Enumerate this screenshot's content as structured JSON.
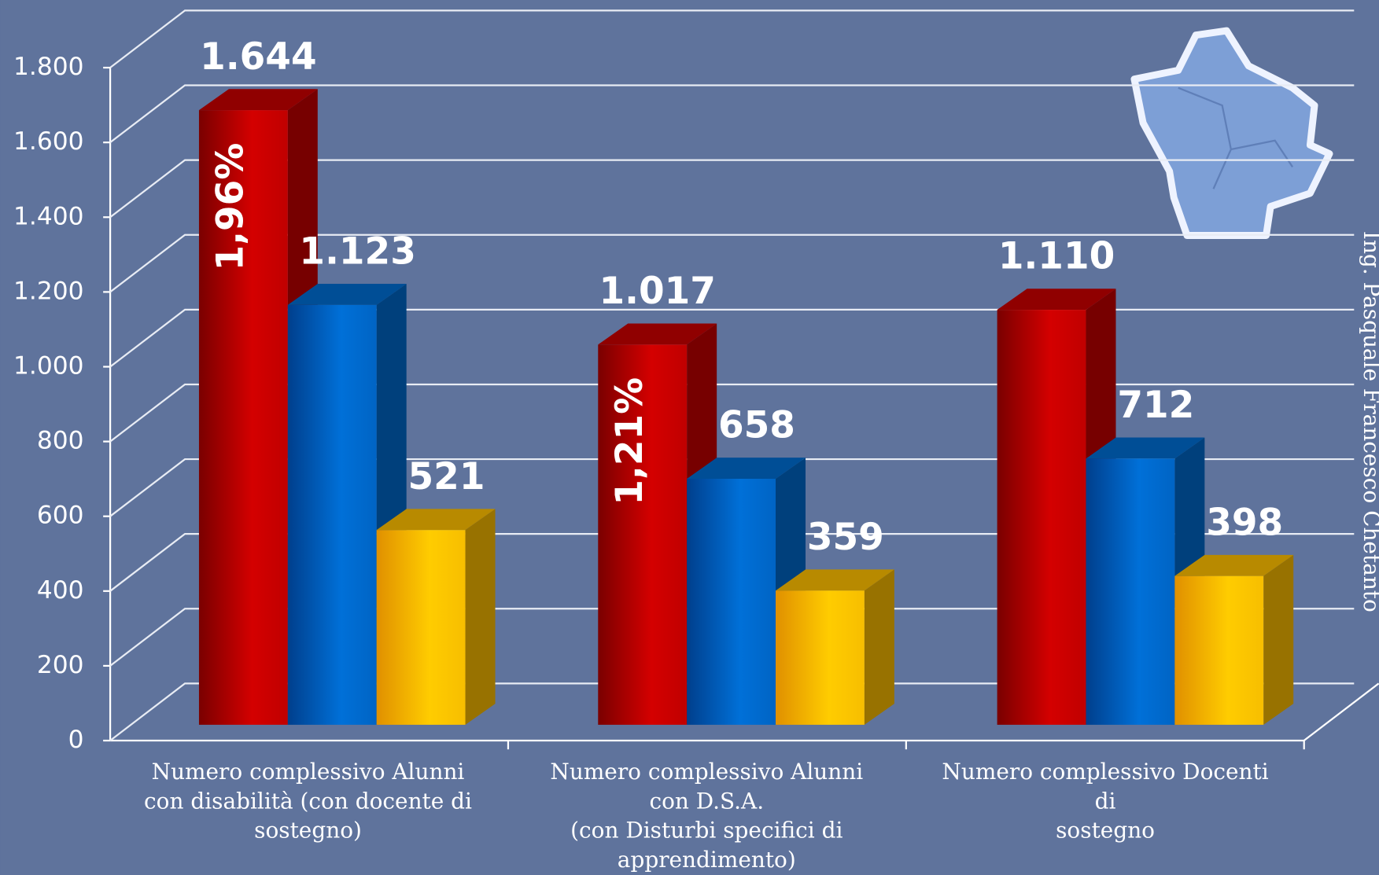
{
  "chart_data": {
    "type": "bar3d",
    "categories": [
      [
        "Numero complessivo Alunni",
        "con disabilità (con docente di",
        "sostegno)"
      ],
      [
        "Numero complessivo Alunni",
        "con D.S.A.",
        "(con Disturbi specifici di",
        "apprendimento)"
      ],
      [
        "Numero complessivo Docenti",
        "di",
        "sostegno"
      ]
    ],
    "series": [
      {
        "color": "#c00000",
        "values": [
          1644,
          1017,
          1110
        ],
        "value_labels": [
          "1.644",
          "1.017",
          "1.110"
        ],
        "annotations": [
          "1,96%",
          "1,21%",
          null
        ]
      },
      {
        "color": "#0068c8",
        "values": [
          1123,
          658,
          712
        ],
        "value_labels": [
          "1.123",
          "658",
          "712"
        ]
      },
      {
        "color": "#f5b800",
        "values": [
          521,
          359,
          398
        ],
        "value_labels": [
          "521",
          "359",
          "398"
        ]
      }
    ],
    "ylim": [
      0,
      1800
    ],
    "yticks": [
      0,
      200,
      400,
      600,
      800,
      {
        "value": 1000,
        "label": "1.000"
      },
      {
        "value": 1200,
        "label": "1.200"
      },
      {
        "value": 1400,
        "label": "1.400"
      },
      {
        "value": 1600,
        "label": "1.600"
      },
      {
        "value": 1800,
        "label": "1.800"
      }
    ],
    "grid": true,
    "credit": "Ing. Pasquale Francesco Chetanto"
  }
}
